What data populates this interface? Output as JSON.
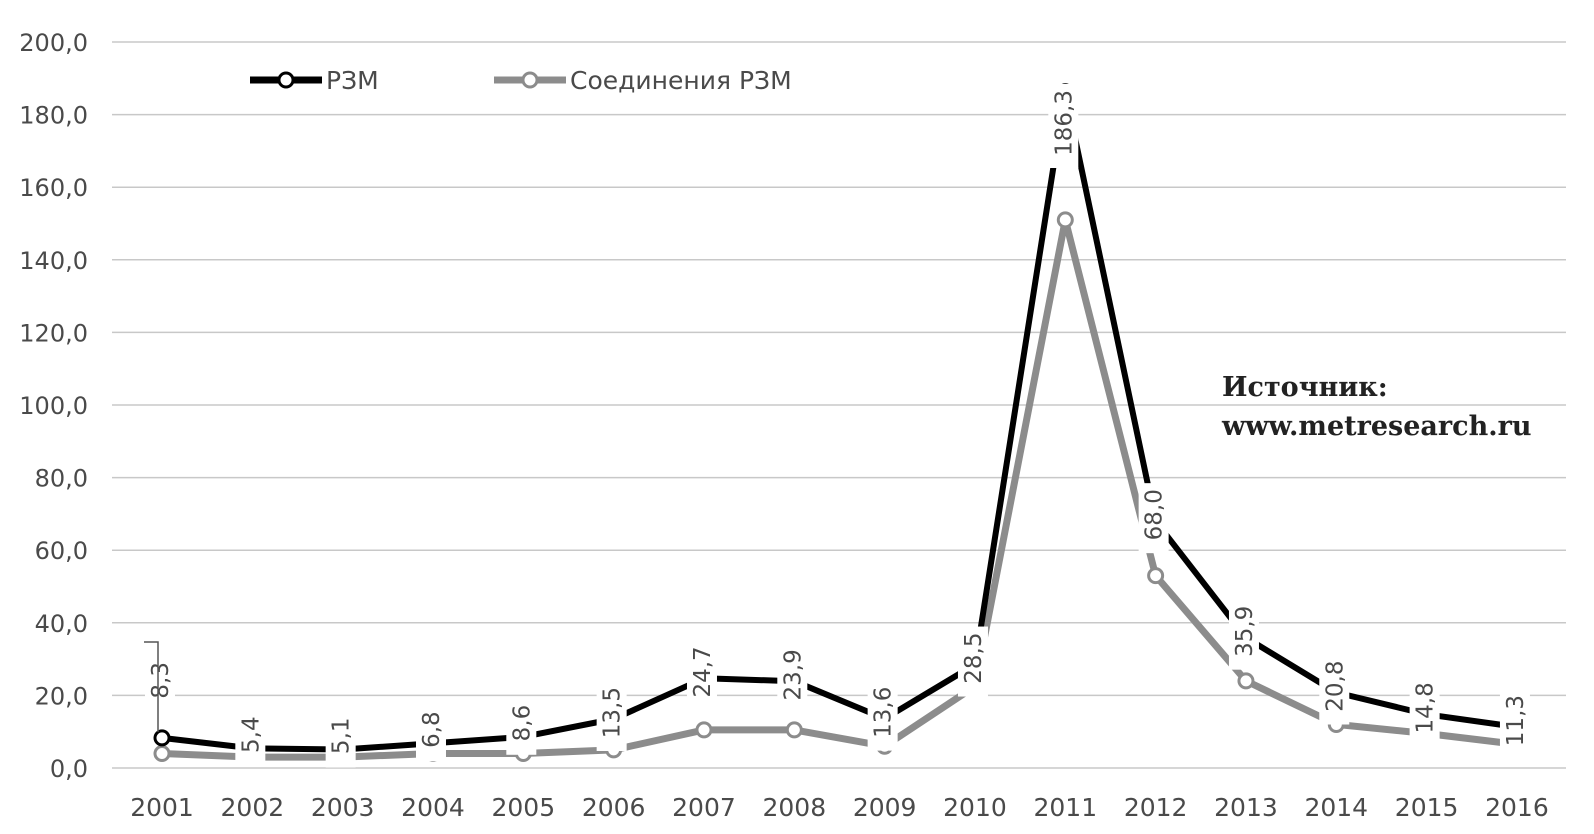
{
  "chart_data": {
    "type": "line",
    "title": "",
    "xlabel": "",
    "ylabel": "",
    "x": [
      "2001",
      "2002",
      "2003",
      "2004",
      "2005",
      "2006",
      "2007",
      "2008",
      "2009",
      "2010",
      "2011",
      "2012",
      "2013",
      "2014",
      "2015",
      "2016"
    ],
    "ylim": [
      0,
      200
    ],
    "y_ticks": [
      "0,0",
      "20,0",
      "40,0",
      "60,0",
      "80,0",
      "100,0",
      "120,0",
      "140,0",
      "160,0",
      "180,0",
      "200,0"
    ],
    "grid": true,
    "legend_position": "top-left",
    "series": [
      {
        "name": "РЗМ",
        "color": "#000000",
        "values": [
          8.3,
          5.4,
          5.1,
          6.8,
          8.6,
          13.5,
          24.7,
          23.9,
          13.6,
          28.5,
          186.3,
          68.0,
          35.9,
          20.8,
          14.8,
          11.3
        ],
        "data_labels": [
          "8,3",
          "5,4",
          "5,1",
          "6,8",
          "8,6",
          "13,5",
          "24,7",
          "23,9",
          "13,6",
          "28,5",
          "186,3",
          "68,0",
          "35,9",
          "20,8",
          "14,8",
          "11,3"
        ]
      },
      {
        "name": "Соединения РЗМ",
        "color": "#8c8c8c",
        "values": [
          4,
          3,
          3,
          4,
          4,
          5,
          10.5,
          10.5,
          6,
          22.5,
          151,
          53,
          24,
          12,
          9.5,
          6.5
        ]
      }
    ],
    "annotation": {
      "line1": "Источник:",
      "line2": "www.metresearch.ru"
    }
  }
}
